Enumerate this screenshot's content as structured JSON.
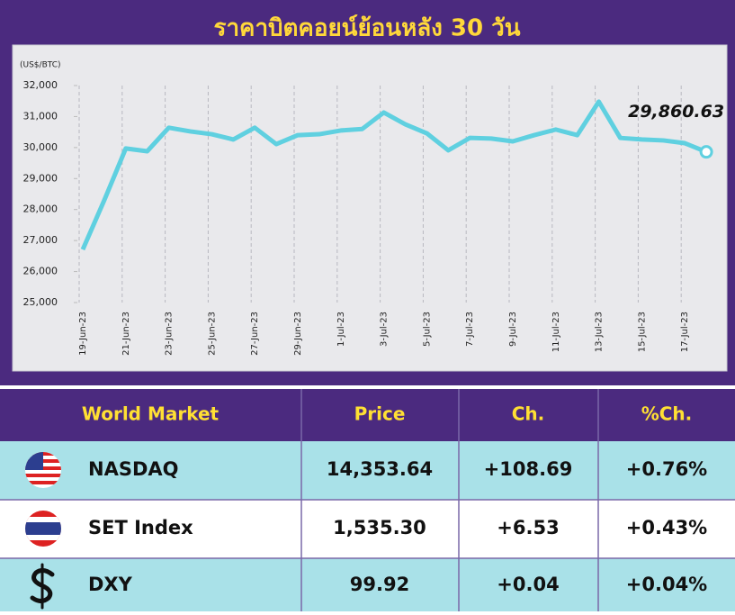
{
  "chart_data": {
    "type": "line",
    "title": "ราคาบิตคอยน์ย้อนหลัง 30 วัน",
    "y_label": "(US$/BTC)",
    "categories": [
      "19-Jun-23",
      null,
      "21-Jun-23",
      null,
      "23-Jun-23",
      null,
      "25-Jun-23",
      null,
      "27-Jun-23",
      null,
      "29-Jun-23",
      null,
      "1-Jul-23",
      null,
      "3-Jul-23",
      null,
      "5-Jul-23",
      null,
      "7-Jul-23",
      null,
      "9-Jul-23",
      null,
      "11-Jul-23",
      null,
      "13-Jul-23",
      null,
      "15-Jul-23",
      null,
      "17-Jul-23",
      null
    ],
    "series": [
      {
        "name": "BTC",
        "color": "#5fd0e0",
        "values": [
          26710,
          28300,
          29970,
          29880,
          30640,
          30520,
          30430,
          30260,
          30640,
          30110,
          30400,
          30430,
          30550,
          30600,
          31130,
          30750,
          30460,
          29910,
          30310,
          30290,
          30200,
          30400,
          30580,
          30400,
          31480,
          30310,
          30260,
          30230,
          30140,
          29860.63
        ],
        "value_labels": [
          null,
          null,
          null,
          null,
          null,
          null,
          null,
          null,
          null,
          null,
          null,
          null,
          null,
          null,
          null,
          null,
          null,
          null,
          null,
          null,
          null,
          null,
          null,
          null,
          null,
          null,
          null,
          null,
          null,
          "29,860.63"
        ]
      }
    ],
    "ylim": [
      25000,
      32000
    ],
    "yticks": [
      {
        "value": 25000,
        "label": "25,000"
      },
      {
        "value": 26000,
        "label": "26,000"
      },
      {
        "value": 27000,
        "label": "27,000"
      },
      {
        "value": 28000,
        "label": "28,000"
      },
      {
        "value": 29000,
        "label": "29,000"
      },
      {
        "value": 30000,
        "label": "30,000"
      },
      {
        "value": 31000,
        "label": "31,000"
      },
      {
        "value": 32000,
        "label": "32,000"
      }
    ],
    "grid": true
  },
  "table": {
    "header": [
      "World Market",
      "Price",
      "Ch.",
      "%Ch."
    ],
    "rows": [
      [
        "NASDAQ",
        "14,353.64",
        "+108.69",
        "+0.76%"
      ],
      [
        "SET Index",
        "1,535.30",
        "+6.53",
        "+0.43%"
      ],
      [
        "DXY",
        "99.92",
        "+0.04",
        "+0.04%"
      ]
    ]
  }
}
